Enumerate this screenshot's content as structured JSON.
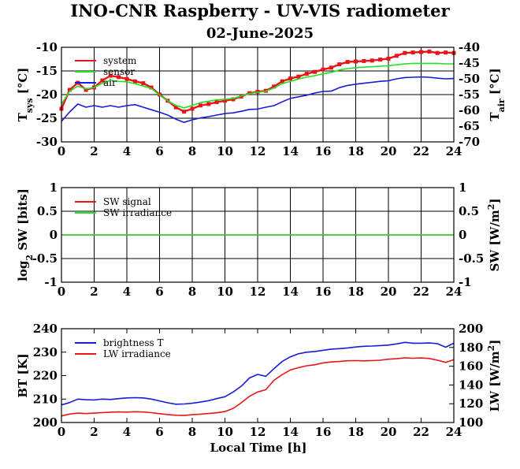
{
  "title": "INO-CNR Raspberry - UV-VIS radiometer",
  "subtitle": "02-June-2025",
  "x_axis": {
    "label": "Local Time [h]",
    "ticks": [
      "0",
      "2",
      "4",
      "6",
      "8",
      "10",
      "12",
      "14",
      "16",
      "18",
      "20",
      "22",
      "24"
    ]
  },
  "colors": {
    "red": "#e8161b",
    "green": "#22e322",
    "blue": "#1a1adb"
  },
  "chart_data": [
    {
      "type": "line",
      "panel": "temperatures",
      "xlim": [
        0,
        24
      ],
      "y_left": {
        "label_main": "T",
        "label_sub": "sys",
        "label_unit": " [°C]",
        "lim": [
          -30,
          -10
        ],
        "ticks": [
          "-10",
          "-15",
          "-20",
          "-25",
          "-30"
        ]
      },
      "y_right": {
        "label_main": "T",
        "label_sub": "air",
        "label_unit": " [°C]",
        "lim": [
          -70,
          -40
        ],
        "ticks": [
          "-40",
          "-45",
          "-50",
          "-55",
          "-60",
          "-65",
          "-70"
        ]
      },
      "grid": true,
      "legend_position": "top-left",
      "x": [
        0,
        0.5,
        1,
        1.5,
        2,
        2.5,
        3,
        3.5,
        4,
        4.5,
        5,
        5.5,
        6,
        6.5,
        7,
        7.5,
        8,
        8.5,
        9,
        9.5,
        10,
        10.5,
        11,
        11.5,
        12,
        12.5,
        13,
        13.5,
        14,
        14.5,
        15,
        15.5,
        16,
        16.5,
        17,
        17.5,
        18,
        18.5,
        19,
        19.5,
        20,
        20.5,
        21,
        21.5,
        22,
        22.5,
        23,
        23.5,
        24
      ],
      "series": [
        {
          "name": "system",
          "axis": "left",
          "values": [
            -23,
            -19,
            -17.5,
            -19,
            -18.5,
            -17,
            -16,
            -16.3,
            -16.7,
            -17.2,
            -17.6,
            -18.5,
            -20,
            -21.3,
            -22.7,
            -23.6,
            -23,
            -22.3,
            -22,
            -21.6,
            -21.3,
            -21,
            -20.4,
            -19.7,
            -19.4,
            -19.2,
            -18.3,
            -17.2,
            -16.6,
            -16.2,
            -15.6,
            -15.2,
            -14.7,
            -14.3,
            -13.6,
            -13.1,
            -13,
            -12.9,
            -12.8,
            -12.6,
            -12.4,
            -11.8,
            -11.2,
            -11.1,
            -11,
            -10.9,
            -11.2,
            -11.1,
            -11.2
          ]
        },
        {
          "name": "sensor",
          "axis": "left",
          "values": [
            -22,
            -19.3,
            -18.2,
            -18.8,
            -18.5,
            -17.6,
            -17,
            -17.2,
            -17.3,
            -17.7,
            -18.2,
            -18.7,
            -20.1,
            -21.3,
            -22.3,
            -22.8,
            -22.3,
            -21.7,
            -21.4,
            -21.1,
            -21,
            -20.8,
            -20.3,
            -19.8,
            -19.5,
            -19.3,
            -18.6,
            -17.7,
            -17.2,
            -16.7,
            -16.3,
            -16,
            -15.6,
            -15.3,
            -14.8,
            -14.5,
            -14.3,
            -14.2,
            -14.1,
            -14,
            -13.9,
            -13.7,
            -13.5,
            -13.4,
            -13.4,
            -13.4,
            -13.4,
            -13.5,
            -13.5
          ]
        },
        {
          "name": "air",
          "axis": "right",
          "values": [
            -63.5,
            -60.5,
            -58,
            -59,
            -58.5,
            -59,
            -58.5,
            -59,
            -58.5,
            -58.2,
            -59,
            -59.8,
            -60.6,
            -61.5,
            -62.8,
            -63.8,
            -63,
            -62.4,
            -62,
            -61.5,
            -61,
            -60.8,
            -60.3,
            -59.7,
            -59.6,
            -59,
            -58.5,
            -57.3,
            -56.2,
            -55.7,
            -55.2,
            -54.5,
            -54,
            -53.9,
            -52.8,
            -52.1,
            -51.7,
            -51.4,
            -51.1,
            -50.8,
            -50.6,
            -50,
            -49.6,
            -49.5,
            -49.4,
            -49.5,
            -49.8,
            -50,
            -49.9
          ]
        }
      ]
    },
    {
      "type": "line",
      "panel": "shortwave",
      "xlim": [
        0,
        24
      ],
      "y_left": {
        "label_main": "log",
        "label_sub": "2",
        "label_unit": " SW [bits]",
        "lim": [
          -1,
          1
        ],
        "ticks": [
          "1",
          "0.5",
          "0",
          "-0.5",
          "-1"
        ]
      },
      "y_right": {
        "label_main": "SW [W/m",
        "label_sup": "2",
        "label_unit": "]",
        "lim": [
          -1,
          1
        ],
        "ticks": [
          "1",
          "0.5",
          "0",
          "-0.5",
          "-1"
        ]
      },
      "grid": true,
      "legend_position": "top-left",
      "x": [
        0,
        24
      ],
      "series": [
        {
          "name": "SW signal",
          "axis": "left",
          "values": [
            0,
            0
          ]
        },
        {
          "name": "SW irradiance",
          "axis": "right",
          "values": [
            0,
            0
          ]
        }
      ]
    },
    {
      "type": "line",
      "panel": "longwave",
      "xlim": [
        0,
        24
      ],
      "y_left": {
        "label_main": "BT [K]",
        "lim": [
          200,
          240
        ],
        "ticks": [
          "240",
          "230",
          "220",
          "210",
          "200"
        ]
      },
      "y_right": {
        "label_main": "LW [W/m",
        "label_sup": "2",
        "label_unit": "]",
        "lim": [
          100,
          200
        ],
        "ticks": [
          "200",
          "180",
          "160",
          "140",
          "120",
          "100"
        ]
      },
      "grid": false,
      "legend_position": "top-left",
      "x": [
        0,
        0.5,
        1,
        1.5,
        2,
        2.5,
        3,
        3.5,
        4,
        4.5,
        5,
        5.5,
        6,
        6.5,
        7,
        7.5,
        8,
        8.5,
        9,
        9.5,
        10,
        10.5,
        11,
        11.5,
        12,
        12.5,
        13,
        13.5,
        14,
        14.5,
        15,
        15.5,
        16,
        16.5,
        17,
        17.5,
        18,
        18.5,
        19,
        19.5,
        20,
        20.5,
        21,
        21.5,
        22,
        22.5,
        23,
        23.5,
        24
      ],
      "series": [
        {
          "name": "brightness T",
          "axis": "left",
          "values": [
            207.5,
            208.5,
            210,
            209.7,
            209.6,
            210,
            209.8,
            210.2,
            210.5,
            210.6,
            210.5,
            210,
            209.2,
            208.4,
            207.8,
            207.9,
            208.2,
            208.7,
            209.3,
            210.2,
            211,
            213,
            215.5,
            219,
            220.5,
            219.7,
            223,
            226,
            228,
            229.3,
            230,
            230.3,
            230.8,
            231.3,
            231.5,
            231.8,
            232.2,
            232.5,
            232.6,
            232.8,
            233,
            233.5,
            234.2,
            233.8,
            233.8,
            233.9,
            233.6,
            232.1,
            233.8
          ]
        },
        {
          "name": "LW irradiance",
          "axis": "right",
          "values": [
            107,
            109,
            110,
            109.5,
            110,
            110.5,
            111,
            111.3,
            111.1,
            111.5,
            111.2,
            110.5,
            109.4,
            108.5,
            107.7,
            107.5,
            108.3,
            108.9,
            109.6,
            110.3,
            111.7,
            115,
            121,
            128,
            132.5,
            135,
            145,
            151,
            156,
            158.5,
            160.5,
            161.5,
            163.5,
            164.5,
            165,
            165.8,
            166,
            165.7,
            166,
            166.4,
            167.5,
            168,
            169,
            168.5,
            168.8,
            168.2,
            166.4,
            164.1,
            167
          ]
        }
      ]
    }
  ]
}
